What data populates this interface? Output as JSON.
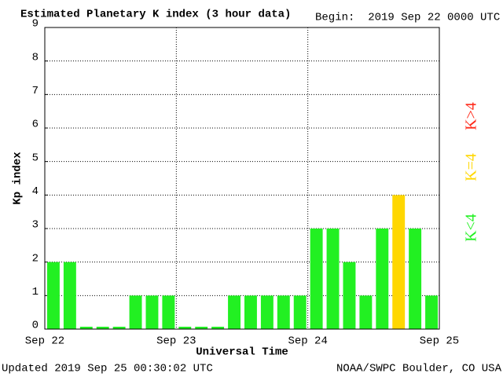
{
  "chart_data": {
    "type": "bar",
    "title": "Estimated Planetary K index (3 hour data)",
    "subtitle": "Begin:  2019 Sep 22 0000 UTC",
    "xlabel": "Universal Time",
    "ylabel": "Kp index",
    "footer_left": "Updated 2019 Sep 25 00:30:02 UTC",
    "footer_right": "NOAA/SWPC Boulder, CO USA",
    "x": [
      0,
      3,
      6,
      9,
      12,
      15,
      18,
      21,
      24,
      27,
      30,
      33,
      36,
      39,
      42,
      45,
      48,
      51,
      54,
      57,
      60,
      63,
      66,
      69
    ],
    "values": [
      2,
      2,
      0,
      0,
      0,
      1,
      1,
      1,
      0,
      0,
      0,
      1,
      1,
      1,
      1,
      1,
      3,
      3,
      2,
      1,
      3,
      4,
      3,
      1
    ],
    "colors": [
      "#22f022",
      "#22f022",
      "#22f022",
      "#22f022",
      "#22f022",
      "#22f022",
      "#22f022",
      "#22f022",
      "#22f022",
      "#22f022",
      "#22f022",
      "#22f022",
      "#22f022",
      "#22f022",
      "#22f022",
      "#22f022",
      "#22f022",
      "#22f022",
      "#22f022",
      "#22f022",
      "#22f022",
      "#ffd700",
      "#22f022",
      "#22f022"
    ],
    "xlim": [
      0,
      72
    ],
    "xticks": [
      {
        "value": 0,
        "label": "Sep 22"
      },
      {
        "value": 24,
        "label": "Sep 23"
      },
      {
        "value": 48,
        "label": "Sep 24"
      },
      {
        "value": 72,
        "label": "Sep 25"
      }
    ],
    "ylim": [
      0,
      9
    ],
    "yticks": [
      0,
      1,
      2,
      3,
      4,
      5,
      6,
      7,
      8,
      9
    ],
    "grid": true,
    "legend": [
      {
        "name": "K<4",
        "color": "#22f022"
      },
      {
        "name": "K=4",
        "color": "#ffd700"
      },
      {
        "name": "K>4",
        "color": "#ff2a1a"
      }
    ]
  }
}
